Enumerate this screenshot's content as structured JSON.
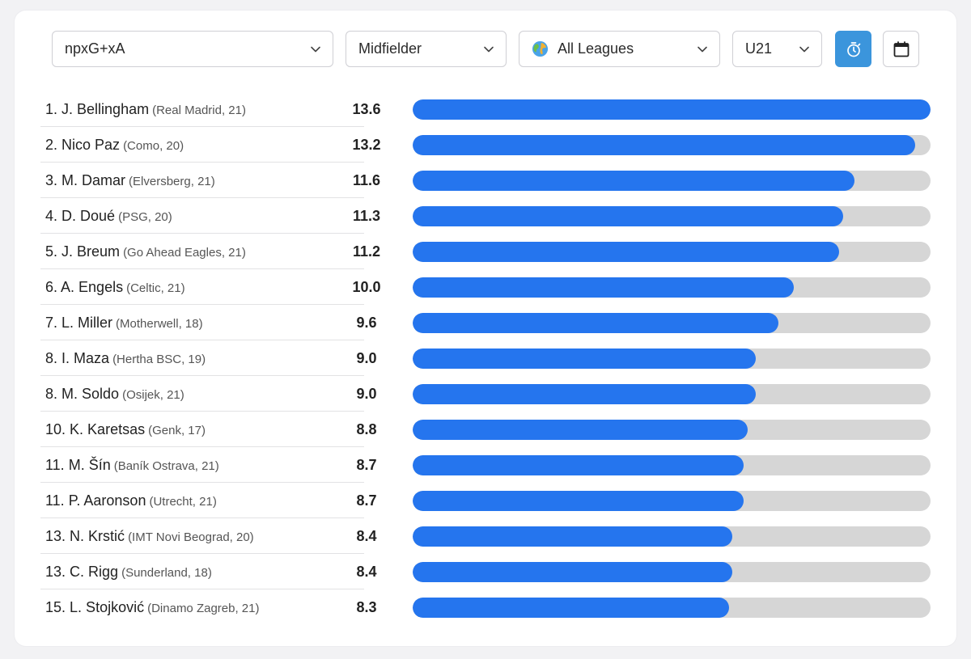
{
  "filters": {
    "metric": {
      "value": "npxG+xA",
      "icon": "chevron-down-icon"
    },
    "position": {
      "value": "Midfielder",
      "icon": "chevron-down-icon"
    },
    "league": {
      "value": "All Leagues",
      "icon": "globe-icon"
    },
    "age": {
      "value": "U21",
      "icon": "chevron-down-icon"
    }
  },
  "buttons": {
    "stopwatch": {
      "icon": "stopwatch-icon",
      "active": true,
      "color": "#3b95dc"
    },
    "calendar": {
      "icon": "calendar-icon",
      "active": false
    }
  },
  "colors": {
    "bar_fill": "#2575ee",
    "bar_track": "#d6d6d6"
  },
  "scale_max": 13.6,
  "players": [
    {
      "rank": "1.",
      "name": "J. Bellingham",
      "meta": "(Real Madrid, 21)",
      "value": "13.6"
    },
    {
      "rank": "2.",
      "name": "Nico Paz",
      "meta": "(Como, 20)",
      "value": "13.2"
    },
    {
      "rank": "3.",
      "name": "M. Damar",
      "meta": "(Elversberg, 21)",
      "value": "11.6"
    },
    {
      "rank": "4.",
      "name": "D. Doué",
      "meta": "(PSG, 20)",
      "value": "11.3"
    },
    {
      "rank": "5.",
      "name": "J. Breum",
      "meta": "(Go Ahead Eagles, 21)",
      "value": "11.2"
    },
    {
      "rank": "6.",
      "name": "A. Engels",
      "meta": "(Celtic, 21)",
      "value": "10.0"
    },
    {
      "rank": "7.",
      "name": "L. Miller",
      "meta": "(Motherwell, 18)",
      "value": "9.6"
    },
    {
      "rank": "8.",
      "name": "I. Maza",
      "meta": "(Hertha BSC, 19)",
      "value": "9.0"
    },
    {
      "rank": "8.",
      "name": "M. Soldo",
      "meta": "(Osijek, 21)",
      "value": "9.0"
    },
    {
      "rank": "10.",
      "name": "K. Karetsas",
      "meta": "(Genk, 17)",
      "value": "8.8"
    },
    {
      "rank": "11.",
      "name": "M. Šín",
      "meta": "(Baník Ostrava, 21)",
      "value": "8.7"
    },
    {
      "rank": "11.",
      "name": "P. Aaronson",
      "meta": "(Utrecht, 21)",
      "value": "8.7"
    },
    {
      "rank": "13.",
      "name": "N. Krstić",
      "meta": "(IMT Novi Beograd, 20)",
      "value": "8.4"
    },
    {
      "rank": "13.",
      "name": "C. Rigg",
      "meta": "(Sunderland, 18)",
      "value": "8.4"
    },
    {
      "rank": "15.",
      "name": "L. Stojković",
      "meta": "(Dinamo Zagreb, 21)",
      "value": "8.3"
    }
  ]
}
